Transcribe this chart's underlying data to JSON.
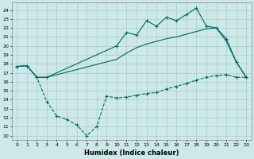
{
  "xlabel": "Humidex (Indice chaleur)",
  "bg_color": "#cce8e8",
  "line_color": "#006666",
  "grid_color": "#aacccc",
  "xlim": [
    -0.5,
    23.5
  ],
  "ylim": [
    9.5,
    24.8
  ],
  "xticks": [
    0,
    1,
    2,
    3,
    4,
    5,
    6,
    7,
    8,
    9,
    10,
    11,
    12,
    13,
    14,
    15,
    16,
    17,
    18,
    19,
    20,
    21,
    22,
    23
  ],
  "yticks": [
    10,
    11,
    12,
    13,
    14,
    15,
    16,
    17,
    18,
    19,
    20,
    21,
    22,
    23,
    24
  ],
  "line1_x": [
    0,
    1,
    2,
    3,
    4,
    5,
    6,
    7,
    8,
    9,
    10,
    11,
    12,
    13,
    14,
    15,
    16,
    17,
    18,
    19,
    20,
    21,
    22,
    23
  ],
  "line1_y": [
    17.7,
    17.8,
    16.5,
    13.8,
    12.2,
    11.8,
    11.2,
    10.0,
    11.0,
    14.4,
    14.2,
    14.3,
    14.5,
    14.7,
    14.8,
    15.2,
    15.5,
    15.8,
    16.2,
    16.5,
    16.7,
    16.8,
    16.5,
    16.5
  ],
  "line2_x": [
    0,
    1,
    2,
    3,
    10,
    11,
    12,
    13,
    14,
    15,
    16,
    17,
    18,
    19,
    20,
    21,
    22,
    23
  ],
  "line2_y": [
    17.7,
    17.8,
    16.5,
    16.5,
    20.0,
    21.5,
    21.2,
    22.8,
    22.2,
    23.2,
    22.8,
    23.5,
    24.2,
    22.2,
    22.0,
    20.8,
    18.2,
    16.5
  ],
  "line3_x": [
    0,
    1,
    2,
    3,
    10,
    11,
    12,
    13,
    14,
    15,
    16,
    17,
    18,
    19,
    20,
    21,
    22,
    23
  ],
  "line3_y": [
    17.7,
    17.8,
    16.5,
    16.5,
    18.5,
    19.2,
    19.8,
    20.2,
    20.5,
    20.8,
    21.0,
    21.3,
    21.6,
    21.9,
    22.0,
    20.5,
    18.2,
    16.5
  ]
}
